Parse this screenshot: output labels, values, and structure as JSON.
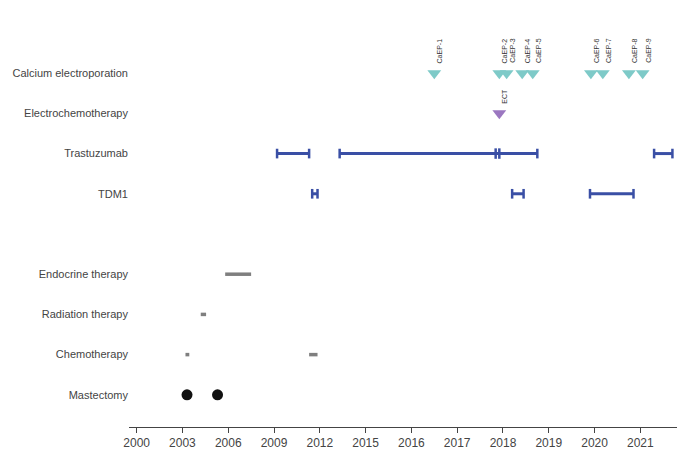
{
  "chart_data": {
    "type": "timeline",
    "categories": [
      "Calcium electroporation",
      "Electrochemotherapy",
      "Trastuzumab",
      "TDM1",
      null,
      "Endocrine therapy",
      "Radiation therapy",
      "Chemotherapy",
      "Mastectomy"
    ],
    "xlim": [
      1999.5,
      2021.8
    ],
    "xticks": [
      2000,
      2003,
      2006,
      2009,
      2012,
      2015,
      2016,
      2017,
      2018,
      2019,
      2020,
      2021
    ],
    "grid": false,
    "series": [
      {
        "row": "Calcium electroporation",
        "type": "scatter",
        "marker": "triangle-down",
        "color": "#7ecac8",
        "x": [
          2016.5,
          2017.92,
          2018.08,
          2018.42,
          2018.65,
          2019.92,
          2020.18,
          2020.75,
          2021.05
        ],
        "labels": [
          "CaEP-1",
          "CaEP-2",
          "CaEP-3",
          "CaEP-4",
          "CaEP-5",
          "CaEP-6",
          "CaEP-7",
          "CaEP-8",
          "CaEP-9"
        ]
      },
      {
        "row": "Electrochemotherapy",
        "type": "scatter",
        "marker": "triangle-down",
        "color": "#9b77c0",
        "x": [
          2017.92
        ],
        "labels": [
          "ECT"
        ]
      },
      {
        "row": "Trastuzumab",
        "type": "interval",
        "marker": "ibeam",
        "color": "#3a4fa5",
        "x_start": [
          2009.2,
          2013.3,
          2021.3
        ],
        "x_end": [
          2011.3,
          2018.75,
          2021.7
        ],
        "break": 2017.88
      },
      {
        "row": "TDM1",
        "type": "interval",
        "marker": "ibeam",
        "color": "#3a4fa5",
        "x_start": [
          2011.5,
          2018.2,
          2019.9
        ],
        "x_end": [
          2011.85,
          2018.45,
          2020.85
        ]
      },
      {
        "row": "Endocrine therapy",
        "type": "interval",
        "color": "#7f7f7f",
        "x_start": [
          2005.8
        ],
        "x_end": [
          2007.5
        ]
      },
      {
        "row": "Radiation therapy",
        "type": "interval",
        "color": "#7f7f7f",
        "x_start": [
          2004.2
        ],
        "x_end": [
          2004.55
        ]
      },
      {
        "row": "Chemotherapy",
        "type": "interval",
        "color": "#7f7f7f",
        "x_start": [
          2003.2,
          2011.3
        ],
        "x_end": [
          2003.45,
          2011.85
        ]
      },
      {
        "row": "Mastectomy",
        "type": "scatter",
        "marker": "circle",
        "color": "#111111",
        "x": [
          2003.3,
          2005.3
        ]
      }
    ]
  }
}
